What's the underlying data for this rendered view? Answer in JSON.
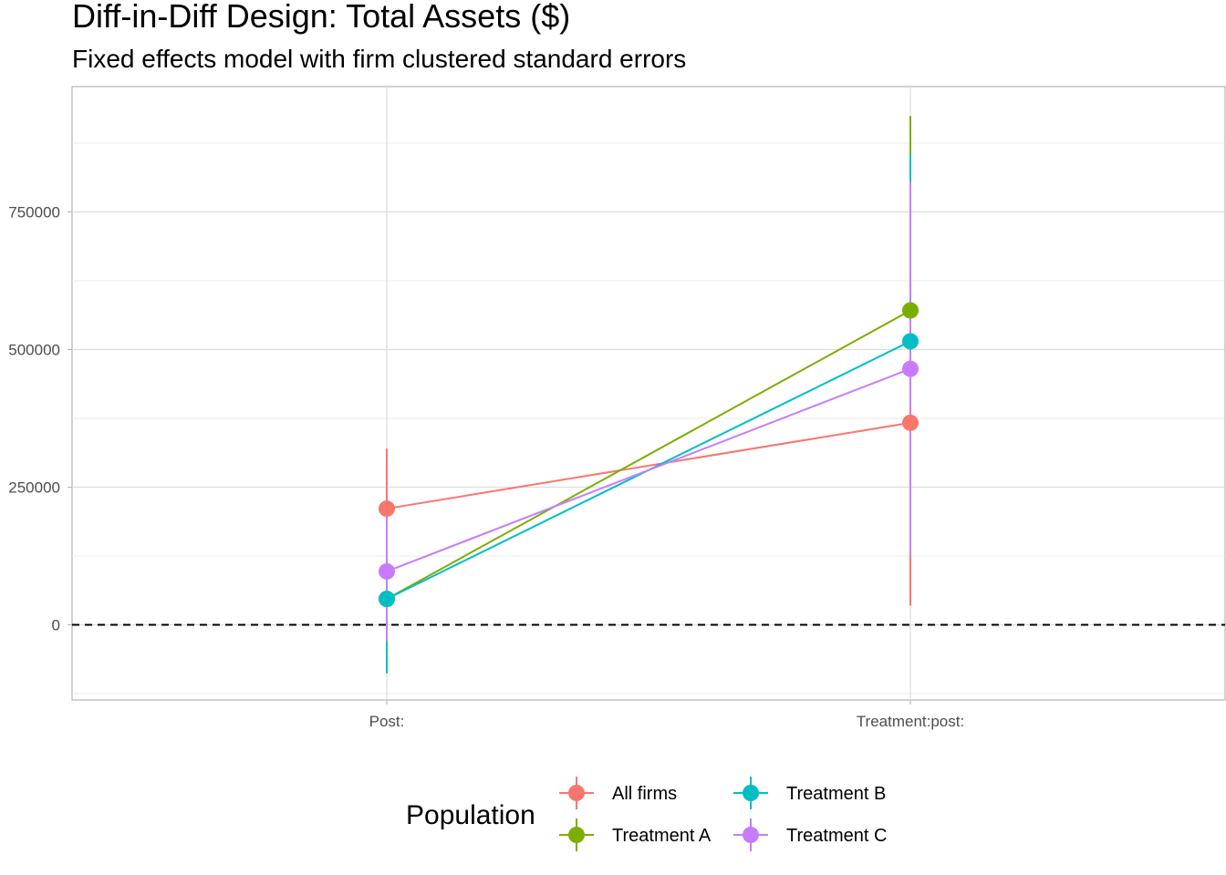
{
  "chart_data": {
    "type": "scatter",
    "title": "Diff-in-Diff Design: Total Assets ($)",
    "subtitle": "Fixed effects model with firm clustered standard errors",
    "xlabel": "",
    "ylabel": "",
    "categories": [
      "Post:",
      "Treatment:post:"
    ],
    "ylim": [
      -140000,
      980000
    ],
    "y_ticks": [
      0,
      250000,
      500000,
      750000
    ],
    "y_tick_labels": [
      "0",
      "250000",
      "500000",
      "750000"
    ],
    "reference_line": {
      "y": 0,
      "style": "dashed"
    },
    "grid": true,
    "legend": {
      "title": "Population",
      "placement": "bottom"
    },
    "series": [
      {
        "name": "All firms",
        "color": "#F8766D",
        "values": [
          211000,
          367000
        ],
        "lower": [
          102000,
          35000
        ],
        "upper": [
          320000,
          699000
        ]
      },
      {
        "name": "Treatment A",
        "color": "#7CAE00",
        "values": [
          47000,
          571000
        ],
        "lower": [
          -35000,
          218000
        ],
        "upper": [
          129000,
          924000
        ]
      },
      {
        "name": "Treatment B",
        "color": "#00BFC4",
        "values": [
          47000,
          515000
        ],
        "lower": [
          -88000,
          175000
        ],
        "upper": [
          182000,
          855000
        ]
      },
      {
        "name": "Treatment C",
        "color": "#C77CFF",
        "values": [
          97000,
          465000
        ],
        "lower": [
          -30000,
          125000
        ],
        "upper": [
          224000,
          805000
        ]
      }
    ]
  }
}
